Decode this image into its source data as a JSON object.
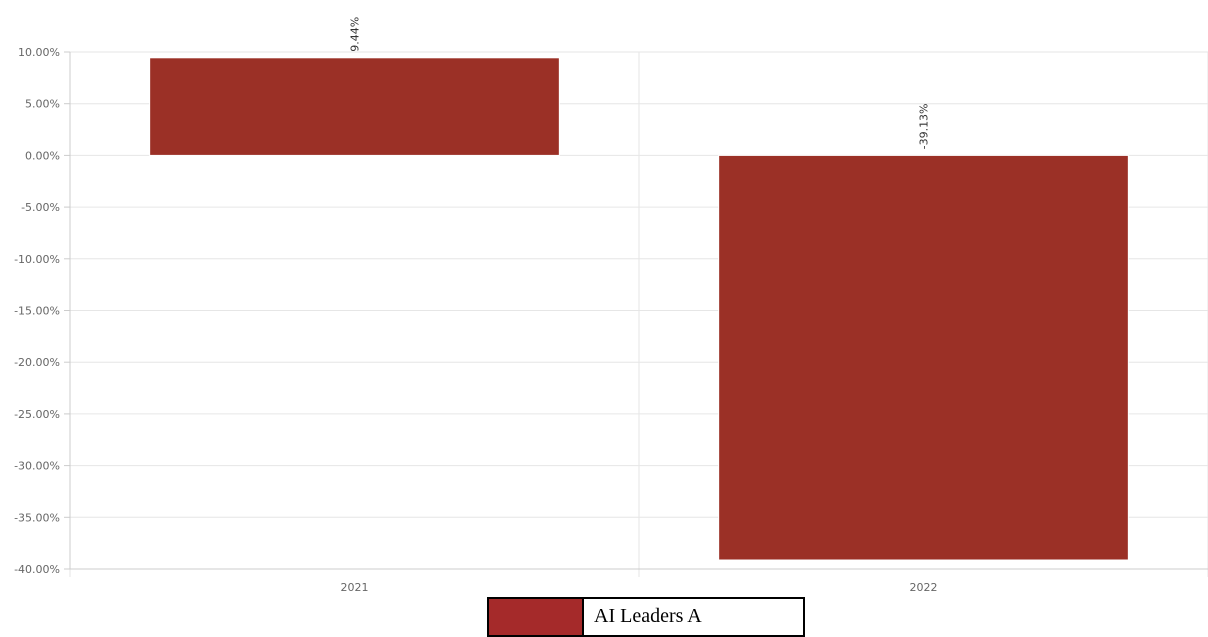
{
  "chart_data": {
    "type": "bar",
    "categories": [
      "2021",
      "2022"
    ],
    "series": [
      {
        "name": "AI Leaders A",
        "values": [
          9.44,
          -39.13
        ],
        "labels": [
          "9.44%",
          "-39.13%"
        ],
        "color": "#9b3026"
      }
    ],
    "ylim": [
      -40,
      10
    ],
    "yticks": [
      10,
      5,
      0,
      -5,
      -10,
      -15,
      -20,
      -25,
      -30,
      -35,
      -40
    ],
    "ytick_labels": [
      "10.00%",
      "5.00%",
      "0.00%",
      "-5.00%",
      "-10.00%",
      "-15.00%",
      "-20.00%",
      "-25.00%",
      "-30.00%",
      "-35.00%",
      "-40.00%"
    ],
    "grid": true,
    "legend_position": "bottom-center"
  },
  "legend": {
    "label": "AI Leaders A",
    "swatch_color": "#a52a2a"
  }
}
